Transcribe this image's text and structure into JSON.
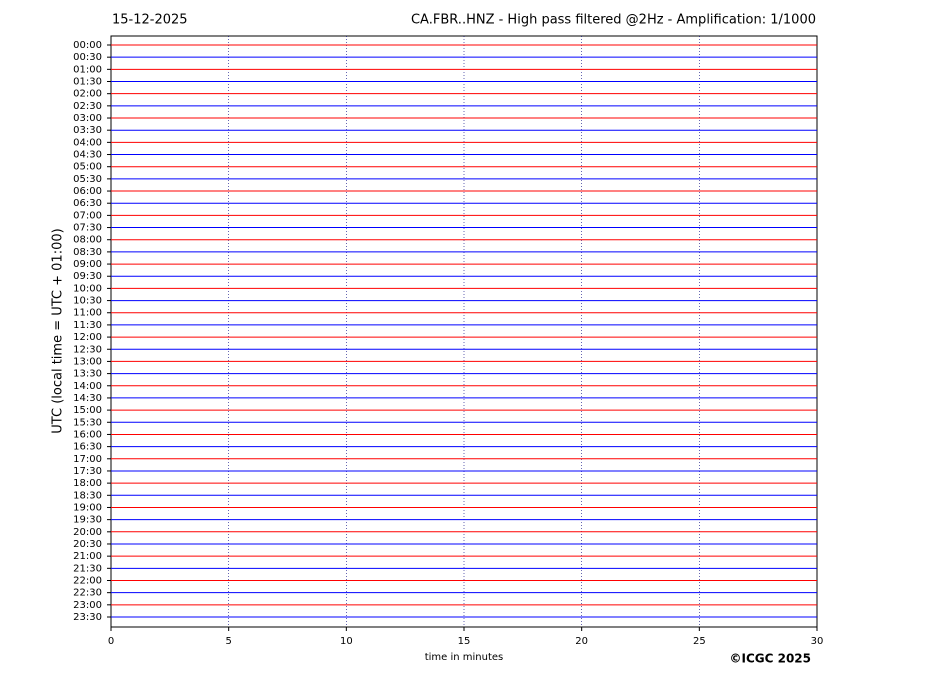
{
  "chart_data": {
    "type": "helicorder",
    "date": "15-12-2025",
    "title": "CA.FBR..HNZ - High pass filtered @2Hz - Amplification: 1/1000",
    "ylabel": "UTC (local time = UTC + 01:00)",
    "xlabel": "time in minutes",
    "credit": "©ICGC 2025",
    "categories": [
      "00:00",
      "00:30",
      "01:00",
      "01:30",
      "02:00",
      "02:30",
      "03:00",
      "03:30",
      "04:00",
      "04:30",
      "05:00",
      "05:30",
      "06:00",
      "06:30",
      "07:00",
      "07:30",
      "08:00",
      "08:30",
      "09:00",
      "09:30",
      "10:00",
      "10:30",
      "11:00",
      "11:30",
      "12:00",
      "12:30",
      "13:00",
      "13:30",
      "14:00",
      "14:30",
      "15:00",
      "15:30",
      "16:00",
      "16:30",
      "17:00",
      "17:30",
      "18:00",
      "18:30",
      "19:00",
      "19:30",
      "20:00",
      "20:30",
      "21:00",
      "21:30",
      "22:00",
      "22:30",
      "23:00",
      "23:30"
    ],
    "colors": [
      "#ff0000",
      "#0000ff"
    ],
    "xlim": [
      0,
      30
    ],
    "xticks": [
      0,
      5,
      10,
      15,
      20,
      25,
      30
    ],
    "grid": true
  }
}
